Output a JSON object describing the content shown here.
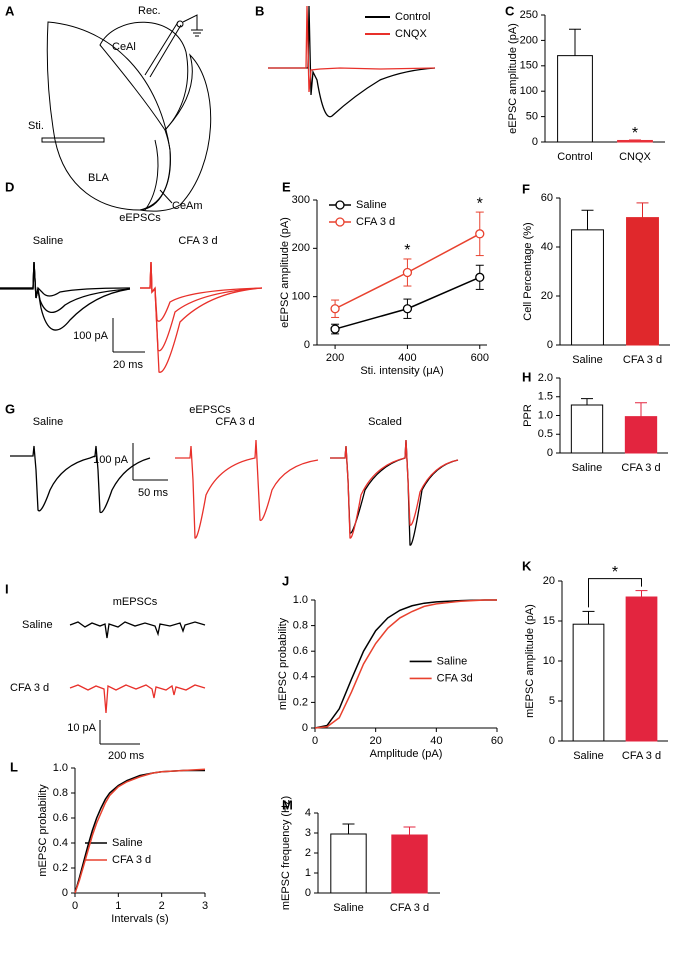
{
  "chart_data": [
    {
      "panel": "C",
      "type": "bar",
      "ylabel": "eEPSC amplitude (pA)",
      "categories": [
        "Control",
        "CNQX"
      ],
      "values": [
        170,
        3
      ],
      "errors": [
        52,
        1
      ],
      "colors": [
        "#ffffff",
        "#e8303a"
      ],
      "edgecolors": [
        "#000000",
        "#e8303a"
      ],
      "ylim": [
        0,
        250
      ],
      "yticks": [
        0,
        50,
        100,
        150,
        200,
        250
      ],
      "annotations": [
        {
          "text": "*",
          "category": 1
        }
      ]
    },
    {
      "panel": "E",
      "type": "line",
      "ylabel": "eEPSC amplitude (pA)",
      "xlabel": "Sti. intensity (μA)",
      "x": [
        200,
        400,
        600
      ],
      "series": [
        {
          "name": "Saline",
          "color": "#000000",
          "values": [
            33,
            75,
            140
          ],
          "errors": [
            10,
            20,
            25
          ]
        },
        {
          "name": "CFA 3 d",
          "color": "#e8412e",
          "values": [
            75,
            150,
            230
          ],
          "errors": [
            18,
            28,
            45
          ]
        }
      ],
      "markers": true,
      "xlim": [
        150,
        620
      ],
      "xticks": [
        200,
        400,
        600
      ],
      "ylim": [
        0,
        300
      ],
      "yticks": [
        0,
        100,
        200,
        300
      ],
      "legend": "upper left",
      "annotations": [
        {
          "text": "*",
          "x": 400
        },
        {
          "text": "*",
          "x": 600
        }
      ]
    },
    {
      "panel": "F",
      "type": "bar",
      "ylabel": "Cell Percentage (%)",
      "categories": [
        "Saline",
        "CFA 3 d"
      ],
      "values": [
        47,
        52
      ],
      "errors": [
        8,
        6
      ],
      "colors": [
        "#ffffff",
        "#e0282c"
      ],
      "edgecolors": [
        "#000000",
        "#e0282c"
      ],
      "ylim": [
        0,
        60
      ],
      "yticks": [
        0,
        20,
        40,
        60
      ]
    },
    {
      "panel": "H",
      "type": "bar",
      "ylabel": "PPR",
      "categories": [
        "Saline",
        "CFA 3 d"
      ],
      "values": [
        1.28,
        0.97
      ],
      "errors": [
        0.17,
        0.37
      ],
      "colors": [
        "#ffffff",
        "#e3253f"
      ],
      "edgecolors": [
        "#000000",
        "#e3253f"
      ],
      "ylim": [
        0,
        2
      ],
      "yticks": [
        0,
        0.5,
        {
          "value": 1,
          "label": "1.0"
        },
        1.5,
        {
          "value": 2,
          "label": "2.0"
        }
      ]
    },
    {
      "panel": "J",
      "type": "line",
      "ylabel": "mEPSC probability",
      "xlabel": "Amplitude (pA)",
      "x": [
        0,
        4,
        8,
        12,
        16,
        20,
        24,
        28,
        32,
        36,
        40,
        44,
        48,
        52,
        56,
        60
      ],
      "series": [
        {
          "name": "Saline",
          "color": "#000000",
          "values": [
            0,
            0.02,
            0.15,
            0.38,
            0.6,
            0.76,
            0.86,
            0.92,
            0.955,
            0.975,
            0.985,
            0.99,
            0.995,
            0.998,
            1,
            1
          ]
        },
        {
          "name": "CFA 3d",
          "color": "#e8412e",
          "values": [
            0,
            0.01,
            0.08,
            0.28,
            0.5,
            0.66,
            0.78,
            0.86,
            0.91,
            0.95,
            0.97,
            0.98,
            0.99,
            0.995,
            1,
            1
          ]
        }
      ],
      "xlim": [
        0,
        60
      ],
      "xticks": [
        0,
        20,
        40,
        60
      ],
      "ylim": [
        0,
        1
      ],
      "yticks": [
        0,
        0.2,
        0.4,
        0.6,
        0.8,
        {
          "value": 1,
          "label": "1.0"
        }
      ],
      "legend": "center right"
    },
    {
      "panel": "K",
      "type": "bar",
      "ylabel": "mEPSC amplitude (pA)",
      "categories": [
        "Saline",
        "CFA 3 d"
      ],
      "values": [
        14.6,
        18.0
      ],
      "errors": [
        1.6,
        0.8
      ],
      "colors": [
        "#ffffff",
        "#e3253f"
      ],
      "edgecolors": [
        "#000000",
        "#e3253f"
      ],
      "ylim": [
        0,
        20
      ],
      "yticks": [
        0,
        5,
        10,
        15,
        20
      ],
      "annotations": [
        {
          "text": "*",
          "categories": [
            0,
            1
          ]
        }
      ]
    },
    {
      "panel": "L",
      "type": "line",
      "ylabel": "mEPSC probability",
      "xlabel": "Intervals (s)",
      "x": [
        0,
        0.1,
        0.2,
        0.3,
        0.4,
        0.5,
        0.6,
        0.7,
        0.8,
        1.0,
        1.2,
        1.5,
        1.8,
        2.0,
        2.5,
        3.0
      ],
      "series": [
        {
          "name": "Saline",
          "color": "#000000",
          "values": [
            0,
            0.12,
            0.25,
            0.38,
            0.5,
            0.6,
            0.68,
            0.75,
            0.8,
            0.86,
            0.9,
            0.94,
            0.96,
            0.97,
            0.98,
            0.98
          ]
        },
        {
          "name": "CFA 3 d",
          "color": "#e8412e",
          "values": [
            0,
            0.1,
            0.22,
            0.34,
            0.46,
            0.56,
            0.64,
            0.72,
            0.78,
            0.85,
            0.89,
            0.93,
            0.96,
            0.97,
            0.98,
            0.99
          ]
        }
      ],
      "xlim": [
        0,
        3
      ],
      "xticks": [
        0,
        1,
        2,
        3
      ],
      "ylim": [
        0,
        1
      ],
      "yticks": [
        0,
        0.2,
        0.4,
        0.6,
        0.8,
        {
          "value": 1,
          "label": "1.0"
        }
      ],
      "legend": "lower left"
    },
    {
      "panel": "M",
      "type": "bar",
      "ylabel": "mEPSC frequency (Hz)",
      "categories": [
        "Saline",
        "CFA 3 d"
      ],
      "values": [
        2.95,
        2.9
      ],
      "errors": [
        0.5,
        0.4
      ],
      "colors": [
        "#ffffff",
        "#e3253f"
      ],
      "edgecolors": [
        "#000000",
        "#e3253f"
      ],
      "ylim": [
        0,
        4
      ],
      "yticks": [
        0,
        1,
        2,
        3,
        4
      ]
    }
  ],
  "diagram": {
    "panel": "A",
    "labels": [
      "Rec.",
      "CeAl",
      "Sti.",
      "BLA",
      "CeAm"
    ]
  },
  "traces": [
    {
      "panel": "B",
      "legend": [
        "Control",
        "CNQX"
      ]
    },
    {
      "panel": "D",
      "title": "eEPSCs",
      "conditions": [
        "Saline",
        "CFA 3 d"
      ],
      "scale": [
        "100 pA",
        "20 ms"
      ]
    },
    {
      "panel": "G",
      "title": "eEPSCs",
      "conditions": [
        "Saline",
        "CFA 3 d",
        "Scaled"
      ],
      "scale": [
        "100 pA",
        "50 ms"
      ]
    },
    {
      "panel": "I",
      "title": "mEPSCs",
      "conditions": [
        "Saline",
        "CFA 3 d"
      ],
      "scale": [
        "10 pA",
        "200 ms"
      ]
    }
  ]
}
